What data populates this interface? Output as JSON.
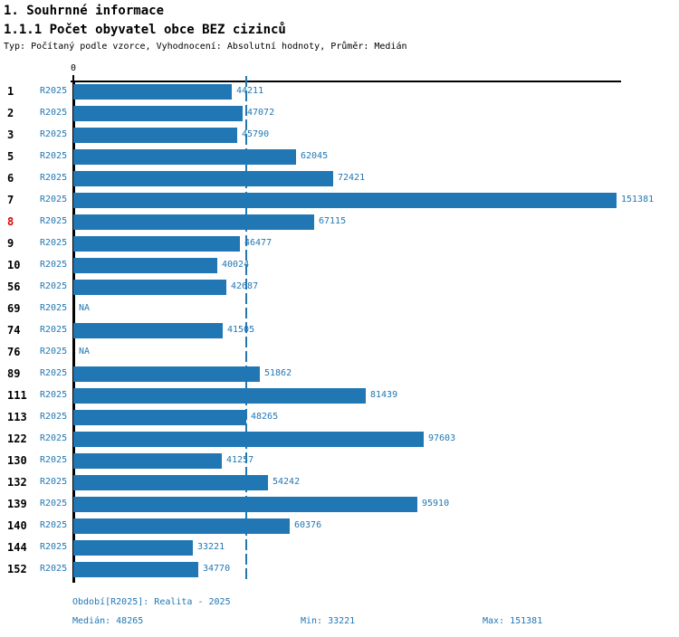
{
  "header": {
    "title": "1. Souhrnné informace",
    "subtitle": "1.1.1 Počet obyvatel obce BEZ cizinců",
    "meta": "Typ: Počítaný podle vzorce, Vyhodnocení: Absolutní hodnoty, Průměr: Medián"
  },
  "chart_data": {
    "type": "bar",
    "orientation": "horizontal",
    "title": "Počet obyvatel obce BEZ cizinců",
    "axis_zero_label": "0",
    "series_label": "R2025",
    "categories": [
      "1",
      "2",
      "3",
      "5",
      "6",
      "7",
      "8",
      "9",
      "10",
      "56",
      "69",
      "74",
      "76",
      "89",
      "111",
      "113",
      "122",
      "130",
      "132",
      "139",
      "140",
      "144",
      "152"
    ],
    "values": [
      44211,
      47072,
      45790,
      62045,
      72421,
      151381,
      67115,
      46477,
      40024,
      42687,
      null,
      41505,
      null,
      51862,
      81439,
      48265,
      97603,
      41257,
      54242,
      95910,
      60376,
      33221,
      34770
    ],
    "na_label": "NA",
    "highlighted_category": "8",
    "median": 48265,
    "min": 33221,
    "max": 151381,
    "xlim": [
      0,
      151381
    ],
    "grid": false,
    "median_line": "dashed",
    "colors": {
      "bar": "#2077b4",
      "blue_text": "#2077b4",
      "highlight_red": "#dd0000",
      "axis_black": "#000000"
    }
  },
  "footer": {
    "period": "Období[R2025]: Realita - 2025",
    "median": "Medián: 48265",
    "min": "Min: 33221",
    "max": "Max: 151381"
  }
}
